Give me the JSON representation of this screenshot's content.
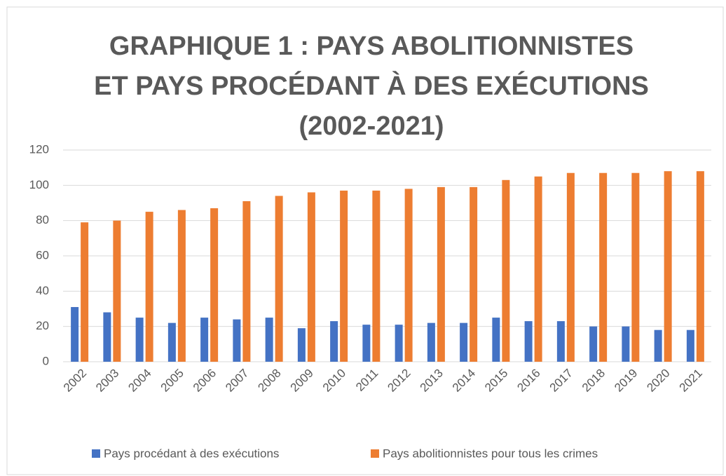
{
  "chart_data": {
    "type": "bar",
    "title": [
      "GRAPHIQUE 1 : PAYS ABOLITIONNISTES",
      "ET PAYS PROCÉDANT À DES EXÉCUTIONS",
      "(2002-2021)"
    ],
    "categories": [
      "2002",
      "2003",
      "2004",
      "2005",
      "2006",
      "2007",
      "2008",
      "2009",
      "2010",
      "2011",
      "2012",
      "2013",
      "2014",
      "2015",
      "2016",
      "2017",
      "2018",
      "2019",
      "2020",
      "2021"
    ],
    "series": [
      {
        "name": "Pays procédant à des exécutions",
        "color": "#4472c4",
        "values": [
          31,
          28,
          25,
          22,
          25,
          24,
          25,
          19,
          23,
          21,
          21,
          22,
          22,
          25,
          23,
          23,
          20,
          20,
          18,
          18
        ]
      },
      {
        "name": "Pays abolitionnistes pour tous les crimes",
        "color": "#ed7d31",
        "values": [
          79,
          80,
          85,
          86,
          87,
          91,
          94,
          96,
          97,
          97,
          98,
          99,
          99,
          103,
          105,
          107,
          107,
          107,
          108,
          108
        ]
      }
    ],
    "ylim": [
      0,
      120
    ],
    "yticks": [
      0,
      20,
      40,
      60,
      80,
      100,
      120
    ],
    "grid": true,
    "legend": "bottom"
  }
}
